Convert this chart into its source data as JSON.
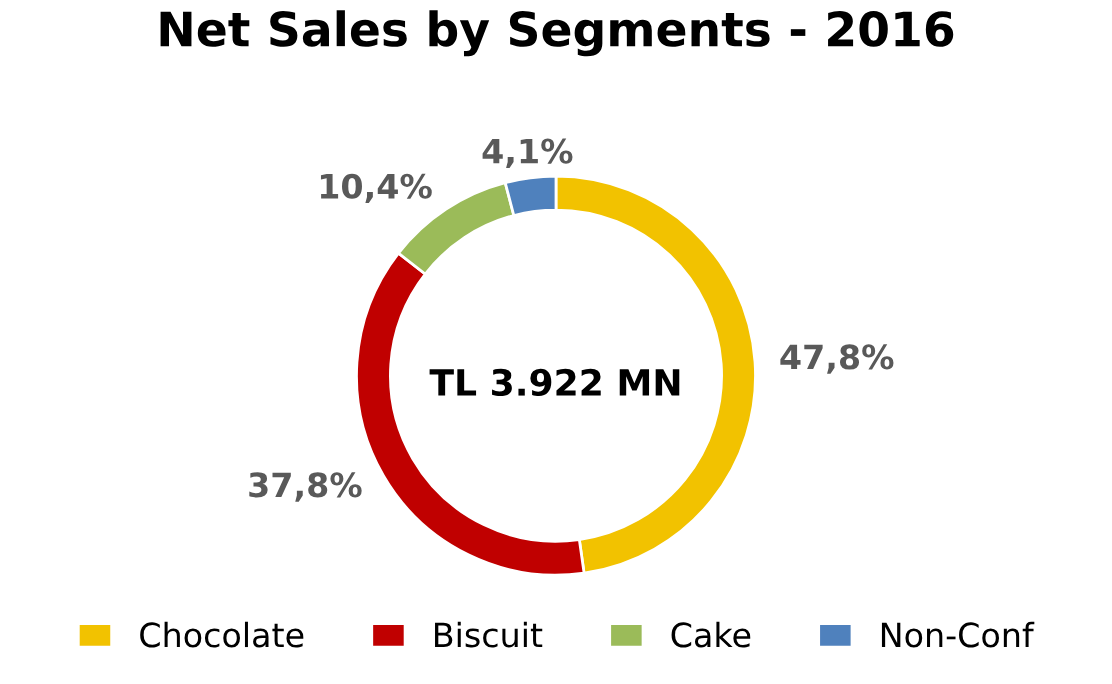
{
  "chart_data": {
    "type": "donut",
    "title": "Net Sales by Segments - 2016",
    "categories": [
      "Chocolate",
      "Biscuit",
      "Cake",
      "Non-Conf"
    ],
    "values": [
      47.8,
      37.8,
      10.4,
      4.1
    ],
    "value_labels": [
      "47,8%",
      "37,8%",
      "10,4%",
      "4,1%"
    ],
    "colors": [
      "#f2c200",
      "#c00000",
      "#9bbb59",
      "#4f81bd"
    ],
    "annotations": [
      "TL 3.922 MN"
    ],
    "legend": "bottom"
  }
}
